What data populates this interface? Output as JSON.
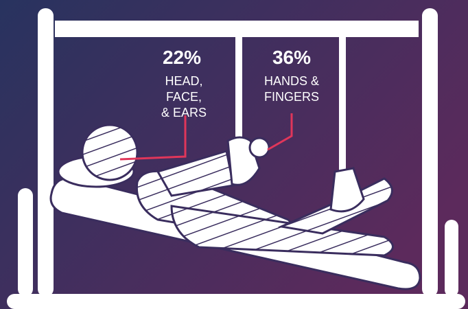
{
  "callouts": [
    {
      "value": "22%",
      "lines": [
        "HEAD,",
        "FACE,",
        "& EARS"
      ]
    },
    {
      "value": "36%",
      "lines": [
        "HANDS &",
        "FINGERS"
      ]
    }
  ]
}
